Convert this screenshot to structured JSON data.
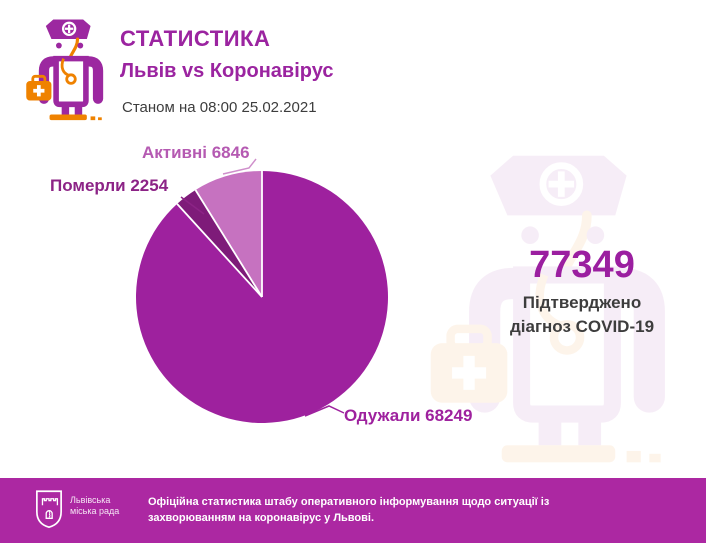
{
  "header": {
    "title": "СТАТИСТИКА",
    "subtitle": "Львів vs Коронавірус",
    "as_of": "Станом на 08:00 25.02.2021"
  },
  "stats": {
    "confirmed_value": "77349",
    "confirmed_caption": "Підтверджено діагноз COVID-19"
  },
  "chart_data": {
    "type": "pie",
    "title": "Львів vs Коронавірус — стан на 08:00 25.02.2021",
    "total": 77349,
    "start_angle_deg": 0,
    "direction": "clockwise",
    "separator_color": "#ffffff",
    "legend_position": "callout-labels",
    "slices": [
      {
        "key": "recovered",
        "label": "Одужали",
        "value": 68249,
        "color": "#9e219e",
        "display": "Одужали 68249"
      },
      {
        "key": "deaths",
        "label": "Померли",
        "value": 2254,
        "color": "#7e1b79",
        "display": "Померли 2254"
      },
      {
        "key": "active",
        "label": "Активні",
        "value": 6846,
        "color": "#c672c0",
        "display": "Активні 6846"
      }
    ]
  },
  "footer": {
    "org_name": "Львівська міська рада",
    "text": "Офіційна статистика штабу оперативного інформування щодо ситуації із захворюванням на коронавірус у Львові."
  },
  "colors": {
    "brand_magenta": "#9b24a0",
    "accent_orange": "#ef8200",
    "label_active": "#b55ab2",
    "label_deaths": "#8c2386",
    "text_dark": "#3d3d3d",
    "footer_bg": "#ac28a2"
  },
  "icons": {
    "doctor": "doctor-icon",
    "crest": "lviv-city-council-crest-icon"
  }
}
